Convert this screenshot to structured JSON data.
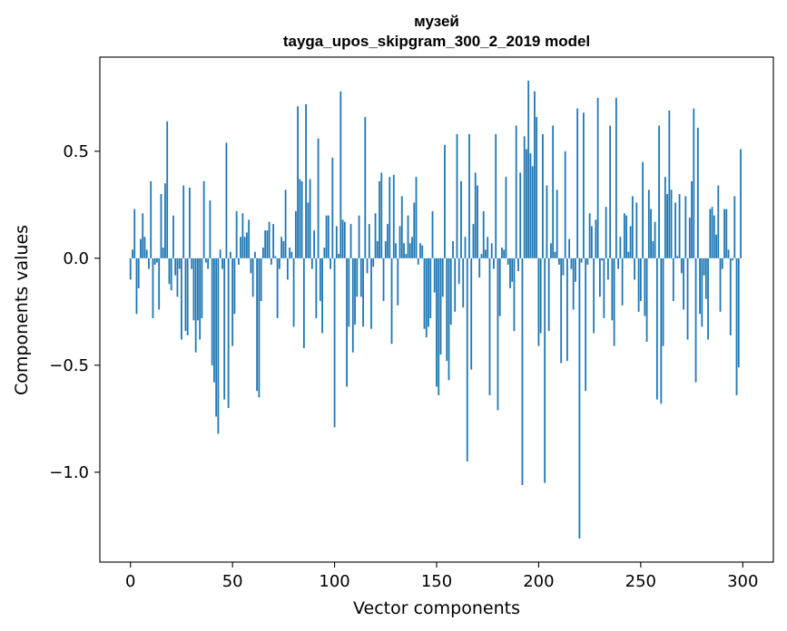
{
  "chart_data": {
    "type": "bar",
    "title": "музей",
    "subtitle": "tayga_upos_skipgram_300_2_2019 model",
    "xlabel": "Vector components",
    "ylabel": "Components values",
    "xlim": [
      -15,
      315
    ],
    "ylim": [
      -1.42,
      0.94
    ],
    "xticks": [
      0,
      50,
      100,
      150,
      200,
      250,
      300
    ],
    "xtick_labels": [
      "0",
      "50",
      "100",
      "150",
      "200",
      "250",
      "300"
    ],
    "yticks": [
      0.5,
      0.0,
      -0.5,
      -1.0
    ],
    "ytick_labels": [
      "0.5",
      "0.0",
      "−0.5",
      "−1.0"
    ],
    "bar_color": "#1f77b4",
    "values": [
      -0.1,
      0.04,
      0.23,
      -0.26,
      -0.14,
      0.09,
      0.21,
      0.1,
      0.04,
      -0.05,
      0.36,
      -0.28,
      -0.03,
      -0.02,
      -0.24,
      0.3,
      0.05,
      0.35,
      0.64,
      -0.12,
      -0.15,
      0.2,
      -0.08,
      -0.18,
      -0.05,
      -0.38,
      0.34,
      -0.34,
      -0.36,
      0.33,
      -0.05,
      -0.29,
      -0.44,
      -0.29,
      -0.38,
      -0.28,
      0.36,
      -0.02,
      -0.05,
      0.27,
      -0.5,
      -0.58,
      -0.74,
      -0.82,
      0.04,
      -0.05,
      -0.66,
      0.54,
      -0.7,
      0.03,
      -0.41,
      -0.26,
      0.22,
      -0.03,
      0.1,
      0.21,
      0.1,
      0.12,
      0.18,
      -0.07,
      -0.18,
      0.03,
      -0.62,
      -0.65,
      -0.2,
      0.05,
      0.13,
      0.13,
      0.17,
      -0.03,
      0.16,
      0.01,
      -0.28,
      -0.05,
      0.1,
      0.08,
      0.32,
      -0.1,
      0.05,
      0.03,
      -0.32,
      0.22,
      0.71,
      0.37,
      0.36,
      -0.42,
      0.72,
      0.26,
      0.37,
      -0.05,
      0.13,
      -0.28,
      0.56,
      -0.2,
      -0.35,
      0.05,
      0.2,
      0.2,
      -0.05,
      0.47,
      -0.79,
      0.15,
      0.02,
      0.78,
      0.18,
      0.17,
      -0.6,
      -0.32,
      0.16,
      -0.44,
      -0.31,
      -0.18,
      0.2,
      -0.18,
      -0.32,
      0.66,
      -0.07,
      0.16,
      -0.33,
      -0.04,
      0.21,
      0.08,
      0.36,
      0.4,
      -0.2,
      0.08,
      0.16,
      0.38,
      -0.4,
      0.39,
      0.07,
      -0.22,
      0.15,
      0.29,
      0.07,
      0.02,
      0.2,
      0.07,
      0.1,
      0.26,
      0.38,
      -0.03,
      0.07,
      0.06,
      -0.33,
      -0.37,
      -0.32,
      -0.28,
      0.22,
      -0.16,
      -0.6,
      -0.64,
      -0.45,
      -0.18,
      0.53,
      -0.48,
      -0.57,
      -0.31,
      0.08,
      -0.25,
      0.58,
      -0.12,
      0.36,
      -0.23,
      0.1,
      -0.95,
      0.58,
      -0.52,
      0.16,
      0.4,
      0.34,
      -0.09,
      0.02,
      0.22,
      0.04,
      0.1,
      -0.64,
      0.07,
      -0.05,
      0.58,
      -0.71,
      -0.27,
      0.05,
      0.04,
      0.38,
      -0.03,
      -0.14,
      -0.11,
      -0.34,
      0.62,
      -0.06,
      0.4,
      -1.06,
      0.57,
      0.51,
      0.83,
      0.49,
      0.43,
      0.78,
      0.66,
      -0.41,
      -0.35,
      0.58,
      -1.05,
      0.34,
      -0.34,
      0.07,
      0.62,
      0.03,
      0.32,
      -0.03,
      -0.49,
      -0.08,
      0.5,
      -0.48,
      0.09,
      -0.05,
      -0.24,
      -0.11,
      0.7,
      -1.31,
      -0.02,
      0.68,
      -0.62,
      -0.03,
      0.21,
      0.15,
      -0.35,
      0.18,
      0.75,
      -0.18,
      -0.01,
      -0.28,
      0.24,
      -0.1,
      0.62,
      -0.29,
      -0.41,
      0.75,
      -0.05,
      0.1,
      -0.22,
      0.21,
      0.2,
      0.03,
      0.15,
      0.29,
      -0.1,
      0.26,
      -0.25,
      -0.2,
      0.45,
      -0.27,
      -0.39,
      0.32,
      0.23,
      0.08,
      0.17,
      -0.66,
      0.62,
      -0.68,
      -0.41,
      0.38,
      0.3,
      0.69,
      0.32,
      -0.2,
      0.26,
      0.01,
      0.3,
      -0.07,
      -0.24,
      0.29,
      -0.38,
      0.19,
      0.36,
      0.7,
      -0.58,
      0.61,
      -0.26,
      -0.32,
      -0.08,
      -0.19,
      -0.38,
      0.23,
      0.24,
      0.2,
      0.11,
      0.34,
      -0.25,
      -0.05,
      0.23,
      0.23,
      0.04,
      -0.36,
      -0.01,
      0.29,
      -0.64,
      -0.51,
      0.51
    ]
  }
}
